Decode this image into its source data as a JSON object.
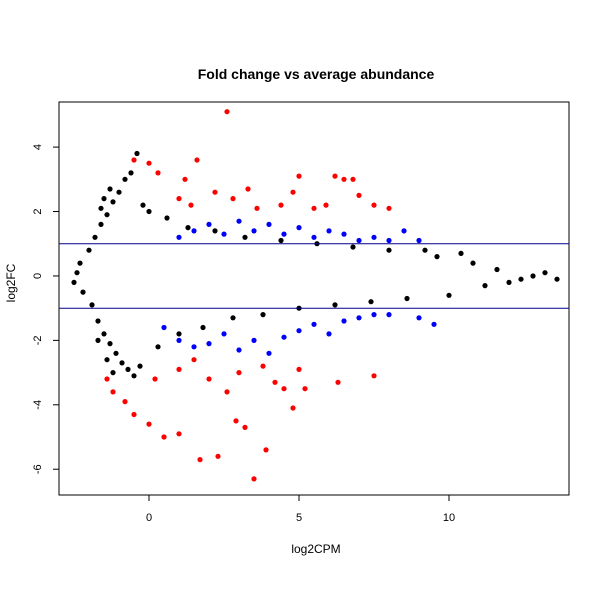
{
  "chart_data": {
    "type": "scatter",
    "title": "Fold change vs average abundance",
    "xlabel": "log2CPM",
    "ylabel": "log2FC",
    "xlim": [
      -3.0,
      14.0
    ],
    "ylim": [
      -6.8,
      5.4
    ],
    "x_ticks": [
      0,
      5,
      10
    ],
    "y_ticks": [
      -6,
      -4,
      -2,
      0,
      2,
      4
    ],
    "x_tick_labels": [
      "0",
      "5",
      "10"
    ],
    "y_tick_labels": [
      "-6",
      "-4",
      "-2",
      "0",
      "2",
      "4"
    ],
    "grid": false,
    "legend": "none",
    "thresholds": [
      1,
      -1
    ],
    "colors": {
      "not_significant": "#000000",
      "significant_within": "#0000ff",
      "significant_beyond": "#ff0000",
      "threshold_line": "#00008b"
    },
    "series": [
      {
        "color": "#000000",
        "description_points": "dense cloud of non-significant genes",
        "points": [
          [
            -2.4,
            0.1
          ],
          [
            -2.5,
            -0.2
          ],
          [
            -2.3,
            0.4
          ],
          [
            -2.2,
            -0.5
          ],
          [
            -2.0,
            0.8
          ],
          [
            -1.9,
            -0.9
          ],
          [
            -1.8,
            1.2
          ],
          [
            -1.7,
            -1.4
          ],
          [
            -1.6,
            1.6
          ],
          [
            -1.5,
            -1.8
          ],
          [
            -1.4,
            1.9
          ],
          [
            -1.3,
            -2.1
          ],
          [
            -1.2,
            2.3
          ],
          [
            -1.1,
            -2.4
          ],
          [
            -1.0,
            2.6
          ],
          [
            -0.9,
            -2.7
          ],
          [
            -0.8,
            3.0
          ],
          [
            -0.7,
            -2.9
          ],
          [
            -1.6,
            2.1
          ],
          [
            -1.7,
            -2.0
          ],
          [
            -1.5,
            2.4
          ],
          [
            -1.4,
            -2.6
          ],
          [
            -1.3,
            2.7
          ],
          [
            -1.2,
            -3.0
          ],
          [
            -0.6,
            3.2
          ],
          [
            -0.5,
            -3.1
          ],
          [
            -0.4,
            3.8
          ],
          [
            -0.3,
            -2.8
          ],
          [
            -0.2,
            2.2
          ],
          [
            0.0,
            2.0
          ],
          [
            0.3,
            -2.2
          ],
          [
            0.6,
            1.8
          ],
          [
            1.0,
            -1.8
          ],
          [
            1.3,
            1.5
          ],
          [
            1.8,
            -1.6
          ],
          [
            2.2,
            1.4
          ],
          [
            2.8,
            -1.3
          ],
          [
            3.2,
            1.2
          ],
          [
            3.8,
            -1.2
          ],
          [
            4.4,
            1.1
          ],
          [
            5.0,
            -1.0
          ],
          [
            5.6,
            1.0
          ],
          [
            6.2,
            -0.9
          ],
          [
            6.8,
            0.9
          ],
          [
            7.4,
            -0.8
          ],
          [
            8.0,
            0.8
          ],
          [
            8.6,
            -0.7
          ],
          [
            9.2,
            0.8
          ],
          [
            9.6,
            0.6
          ],
          [
            10.0,
            -0.6
          ],
          [
            10.4,
            0.7
          ],
          [
            10.8,
            0.4
          ],
          [
            11.2,
            -0.3
          ],
          [
            11.6,
            0.2
          ],
          [
            12.0,
            -0.2
          ],
          [
            12.4,
            -0.1
          ],
          [
            12.8,
            0.0
          ],
          [
            13.2,
            0.1
          ],
          [
            13.6,
            -0.1
          ]
        ]
      },
      {
        "color": "#0000ff",
        "description_points": "significant genes with |log2FC| below about 2.5",
        "points": [
          [
            1.0,
            1.2
          ],
          [
            1.5,
            1.4
          ],
          [
            2.0,
            1.6
          ],
          [
            2.5,
            1.3
          ],
          [
            3.0,
            1.7
          ],
          [
            3.5,
            1.4
          ],
          [
            4.0,
            1.6
          ],
          [
            4.5,
            1.3
          ],
          [
            5.0,
            1.5
          ],
          [
            5.5,
            1.2
          ],
          [
            6.0,
            1.4
          ],
          [
            6.5,
            1.3
          ],
          [
            7.0,
            1.1
          ],
          [
            7.5,
            1.2
          ],
          [
            8.0,
            1.1
          ],
          [
            8.5,
            1.4
          ],
          [
            9.0,
            1.1
          ],
          [
            0.5,
            -1.6
          ],
          [
            1.0,
            -2.0
          ],
          [
            1.5,
            -2.2
          ],
          [
            2.0,
            -2.1
          ],
          [
            2.5,
            -1.8
          ],
          [
            3.0,
            -2.3
          ],
          [
            3.5,
            -2.0
          ],
          [
            4.0,
            -2.4
          ],
          [
            4.5,
            -1.9
          ],
          [
            5.0,
            -1.7
          ],
          [
            5.5,
            -1.5
          ],
          [
            6.0,
            -1.8
          ],
          [
            6.5,
            -1.4
          ],
          [
            7.0,
            -1.3
          ],
          [
            7.5,
            -1.2
          ],
          [
            8.0,
            -1.2
          ],
          [
            9.0,
            -1.3
          ],
          [
            9.5,
            -1.5
          ]
        ]
      },
      {
        "color": "#ff0000",
        "description_points": "significant genes with larger fold changes",
        "points": [
          [
            2.6,
            5.1
          ],
          [
            -0.5,
            3.6
          ],
          [
            0.0,
            3.5
          ],
          [
            0.3,
            3.2
          ],
          [
            1.2,
            3.0
          ],
          [
            1.6,
            3.6
          ],
          [
            1.0,
            2.4
          ],
          [
            1.4,
            2.2
          ],
          [
            2.2,
            2.6
          ],
          [
            2.8,
            2.4
          ],
          [
            3.3,
            2.7
          ],
          [
            3.6,
            2.1
          ],
          [
            4.4,
            2.2
          ],
          [
            4.8,
            2.6
          ],
          [
            5.0,
            3.1
          ],
          [
            5.5,
            2.1
          ],
          [
            5.9,
            2.2
          ],
          [
            6.2,
            3.1
          ],
          [
            6.5,
            3.0
          ],
          [
            6.8,
            3.0
          ],
          [
            7.0,
            2.5
          ],
          [
            7.5,
            2.2
          ],
          [
            8.0,
            2.1
          ],
          [
            -1.4,
            -3.2
          ],
          [
            -1.2,
            -3.6
          ],
          [
            -0.8,
            -3.9
          ],
          [
            -0.5,
            -4.3
          ],
          [
            0.0,
            -4.6
          ],
          [
            0.5,
            -5.0
          ],
          [
            1.0,
            -4.9
          ],
          [
            1.7,
            -5.7
          ],
          [
            2.3,
            -5.6
          ],
          [
            2.9,
            -4.5
          ],
          [
            3.2,
            -4.7
          ],
          [
            3.5,
            -6.3
          ],
          [
            3.9,
            -5.4
          ],
          [
            4.2,
            -3.3
          ],
          [
            4.8,
            -4.1
          ],
          [
            5.2,
            -3.5
          ],
          [
            6.3,
            -3.3
          ],
          [
            7.5,
            -3.1
          ],
          [
            1.0,
            -2.9
          ],
          [
            1.5,
            -2.6
          ],
          [
            2.0,
            -3.2
          ],
          [
            2.6,
            -3.6
          ],
          [
            3.0,
            -3.0
          ],
          [
            3.8,
            -2.8
          ],
          [
            4.5,
            -3.5
          ],
          [
            5.0,
            -2.9
          ],
          [
            0.2,
            -3.2
          ]
        ]
      }
    ]
  }
}
